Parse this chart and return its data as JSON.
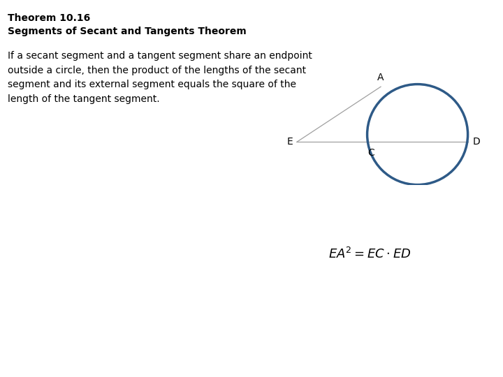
{
  "title_line1": "Theorem 10.16",
  "title_line2": "Segments of Secant and Tangents Theorem",
  "body_text": "If a secant segment and a tangent segment share an endpoint\noutside a circle, then the product of the lengths of the secant\nsegment and its external segment equals the square of the\nlength of the tangent segment.",
  "formula": "$EA^2 = EC \\cdot ED$",
  "background_color": "#ffffff",
  "text_color": "#000000",
  "circle_color": "#2e5a87",
  "circle_linewidth": 2.5,
  "line_color": "#a0a0a0",
  "line_linewidth": 0.9,
  "font_size_title": 10,
  "font_size_body": 10,
  "font_size_label": 10,
  "font_size_formula": 13
}
